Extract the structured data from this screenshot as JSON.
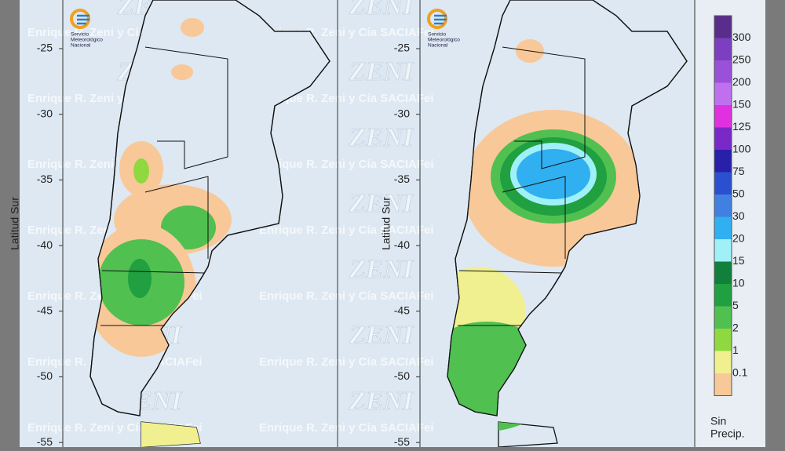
{
  "panels": [
    {
      "axis_label": "Latitud Sur",
      "yticks": [
        -25,
        -30,
        -35,
        -40,
        -45,
        -50,
        -55
      ]
    },
    {
      "axis_label": "Latitud Sur",
      "yticks": [
        -25,
        -30,
        -35,
        -40,
        -45,
        -50,
        -55
      ]
    }
  ],
  "logo": {
    "lines": [
      "Servicio",
      "Meteorológico",
      "Nacional"
    ]
  },
  "watermark": {
    "brand": "ZENI",
    "company": "Enrique R. Zeni y Cía SACIAFei"
  },
  "legend": {
    "items": [
      {
        "label": "300",
        "color": "#7b3fbf"
      },
      {
        "label": "250",
        "color": "#9a50d8"
      },
      {
        "label": "200",
        "color": "#c070ee"
      },
      {
        "label": "150",
        "color": "#e030e0"
      },
      {
        "label": "125",
        "color": "#7a28c8"
      },
      {
        "label": "100",
        "color": "#2820a8"
      },
      {
        "label": "75",
        "color": "#2a50d0"
      },
      {
        "label": "50",
        "color": "#4080e0"
      },
      {
        "label": "30",
        "color": "#30b0f0"
      },
      {
        "label": "20",
        "color": "#a0f0f8"
      },
      {
        "label": "15",
        "color": "#10803a"
      },
      {
        "label": "10",
        "color": "#20a040"
      },
      {
        "label": "5",
        "color": "#50c050"
      },
      {
        "label": "2",
        "color": "#90d840"
      },
      {
        "label": "1",
        "color": "#f0f090"
      },
      {
        "label": "0.1",
        "color": "#f8c898"
      }
    ],
    "top_color": "#5a2d8c",
    "none_label": [
      "Sin",
      "Precip."
    ]
  }
}
